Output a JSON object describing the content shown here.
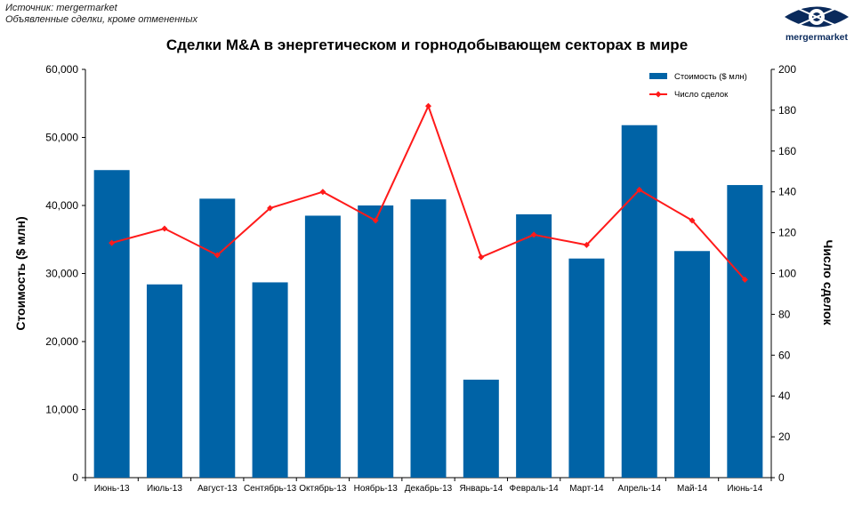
{
  "source": {
    "line1": "Источник: mergermarket",
    "line2": "Объявленные сделки, кроме отмененных"
  },
  "logo": {
    "text": "mergermarket",
    "color": "#0a2a5c"
  },
  "chart_data": {
    "type": "bar+line",
    "title": "Сделки M&A  в энергетическом и горнодобывающем секторах в мире",
    "categories": [
      "Июнь-13",
      "Июль-13",
      "Август-13",
      "Сентябрь-13",
      "Октябрь-13",
      "Ноябрь-13",
      "Декабрь-13",
      "Январь-14",
      "Февраль-14",
      "Март-14",
      "Апрель-14",
      "Май-14",
      "Июнь-14"
    ],
    "series": [
      {
        "name": "Стоимость ($ млн)",
        "type": "bar",
        "axis": "left",
        "color": "#0063a6",
        "values": [
          45200,
          28400,
          41000,
          28700,
          38500,
          40000,
          40900,
          14400,
          38700,
          32200,
          51800,
          33300,
          43000
        ]
      },
      {
        "name": "Число сделок",
        "type": "line",
        "axis": "right",
        "color": "#ff1a1a",
        "values": [
          115,
          122,
          109,
          132,
          140,
          126,
          182,
          108,
          119,
          114,
          141,
          126,
          97
        ]
      }
    ],
    "ylabel_left": "Стоимость  ($ млн)",
    "ylabel_right": "Число сделок",
    "ylim_left": [
      0,
      60000
    ],
    "ylim_right": [
      0,
      200
    ],
    "yticks_left": [
      "0",
      "10,000",
      "20,000",
      "30,000",
      "40,000",
      "50,000",
      "60,000"
    ],
    "yticks_right": [
      "0",
      "20",
      "40",
      "60",
      "80",
      "100",
      "120",
      "140",
      "160",
      "180",
      "200"
    ],
    "grid": false,
    "legend_position": "top-right"
  }
}
